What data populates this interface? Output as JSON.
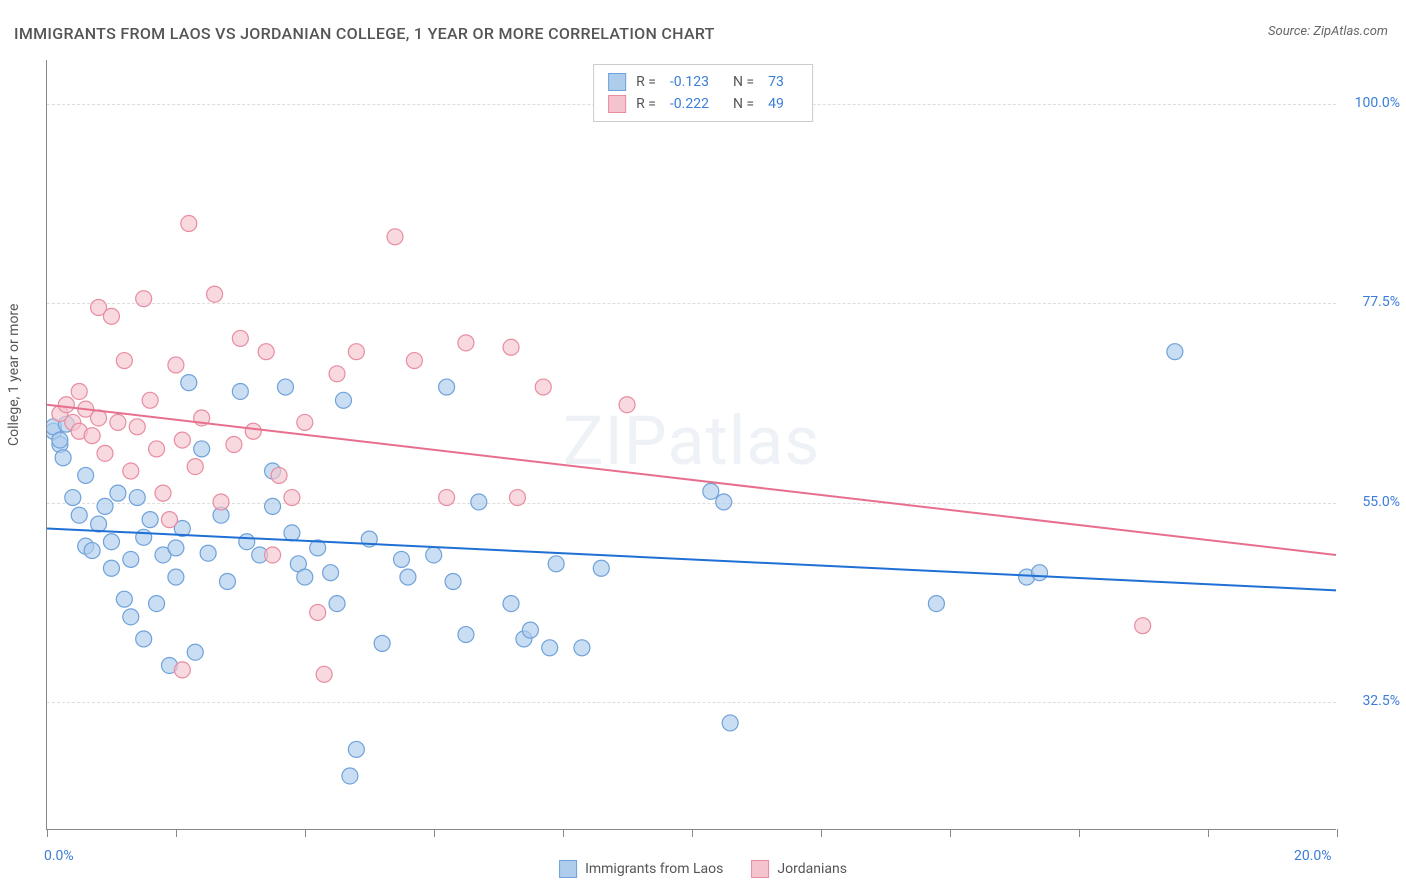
{
  "title": "IMMIGRANTS FROM LAOS VS JORDANIAN COLLEGE, 1 YEAR OR MORE CORRELATION CHART",
  "source": "Source: ZipAtlas.com",
  "watermark": "ZIPatlas",
  "y_axis_title": "College, 1 year or more",
  "chart": {
    "type": "scatter",
    "xlim": [
      0,
      20
    ],
    "ylim": [
      18,
      105
    ],
    "x_ticks": [
      0,
      2,
      4,
      6,
      8,
      10,
      12,
      14,
      16,
      18,
      20
    ],
    "x_tick_labels_shown": {
      "0": "0.0%",
      "20": "20.0%"
    },
    "y_ticks": [
      32.5,
      55.0,
      77.5,
      100.0
    ],
    "y_tick_labels": [
      "32.5%",
      "55.0%",
      "77.5%",
      "100.0%"
    ],
    "grid_color": "#dddddd",
    "axis_color": "#888888",
    "background": "#ffffff",
    "label_color": "#3b7dd8",
    "marker_radius": 8,
    "marker_stroke_width": 1.2,
    "trend_line_width": 2,
    "series": [
      {
        "name": "Immigrants from Laos",
        "fill": "#aeccec",
        "stroke": "#6fa2da",
        "trend_color": "#1f6fd4",
        "R": "-0.123",
        "N": "73",
        "trend": {
          "x1": 0,
          "y1": 52.0,
          "x2": 20,
          "y2": 45.0
        },
        "points": [
          [
            0.1,
            63.0
          ],
          [
            0.1,
            63.5
          ],
          [
            0.2,
            61.5
          ],
          [
            0.2,
            62.0
          ],
          [
            0.25,
            60.0
          ],
          [
            0.3,
            63.8
          ],
          [
            0.4,
            55.5
          ],
          [
            0.5,
            53.5
          ],
          [
            0.6,
            50.0
          ],
          [
            0.6,
            58.0
          ],
          [
            0.7,
            49.5
          ],
          [
            0.8,
            52.5
          ],
          [
            0.9,
            54.5
          ],
          [
            1.0,
            50.5
          ],
          [
            1.0,
            47.5
          ],
          [
            1.1,
            56.0
          ],
          [
            1.2,
            44.0
          ],
          [
            1.3,
            48.5
          ],
          [
            1.3,
            42.0
          ],
          [
            1.5,
            51.0
          ],
          [
            1.5,
            39.5
          ],
          [
            1.6,
            53.0
          ],
          [
            1.7,
            43.5
          ],
          [
            1.8,
            49.0
          ],
          [
            1.9,
            36.5
          ],
          [
            2.0,
            46.5
          ],
          [
            2.0,
            49.8
          ],
          [
            2.1,
            52.0
          ],
          [
            2.2,
            68.5
          ],
          [
            2.3,
            38.0
          ],
          [
            2.4,
            61.0
          ],
          [
            2.5,
            49.2
          ],
          [
            2.7,
            53.5
          ],
          [
            2.8,
            46.0
          ],
          [
            3.0,
            67.5
          ],
          [
            3.1,
            50.5
          ],
          [
            3.3,
            49.0
          ],
          [
            3.5,
            54.5
          ],
          [
            3.5,
            58.5
          ],
          [
            3.7,
            68.0
          ],
          [
            3.8,
            51.5
          ],
          [
            3.9,
            48.0
          ],
          [
            4.0,
            46.5
          ],
          [
            4.2,
            49.8
          ],
          [
            4.4,
            47.0
          ],
          [
            4.5,
            43.5
          ],
          [
            4.6,
            66.5
          ],
          [
            4.7,
            24.0
          ],
          [
            4.8,
            27.0
          ],
          [
            5.0,
            50.8
          ],
          [
            5.2,
            39.0
          ],
          [
            5.5,
            48.5
          ],
          [
            5.6,
            46.5
          ],
          [
            6.0,
            49.0
          ],
          [
            6.2,
            68.0
          ],
          [
            6.3,
            46.0
          ],
          [
            6.5,
            40.0
          ],
          [
            6.7,
            55.0
          ],
          [
            7.2,
            43.5
          ],
          [
            7.4,
            39.5
          ],
          [
            7.5,
            40.5
          ],
          [
            7.8,
            38.5
          ],
          [
            7.9,
            48.0
          ],
          [
            8.3,
            38.5
          ],
          [
            8.6,
            47.5
          ],
          [
            10.3,
            56.2
          ],
          [
            10.5,
            55.0
          ],
          [
            10.6,
            30.0
          ],
          [
            13.8,
            43.5
          ],
          [
            15.2,
            46.5
          ],
          [
            15.4,
            47.0
          ],
          [
            17.5,
            72.0
          ],
          [
            1.4,
            55.5
          ]
        ]
      },
      {
        "name": "Jordanians",
        "fill": "#f4c4ce",
        "stroke": "#e88ca0",
        "trend_color": "#e76f8d",
        "R": "-0.222",
        "N": "49",
        "trend": {
          "x1": 0,
          "y1": 66.0,
          "x2": 20,
          "y2": 49.0
        },
        "points": [
          [
            0.2,
            65.0
          ],
          [
            0.3,
            66.0
          ],
          [
            0.4,
            64.0
          ],
          [
            0.5,
            63.0
          ],
          [
            0.5,
            67.5
          ],
          [
            0.6,
            65.5
          ],
          [
            0.7,
            62.5
          ],
          [
            0.8,
            77.0
          ],
          [
            0.8,
            64.5
          ],
          [
            0.9,
            60.5
          ],
          [
            1.0,
            76.0
          ],
          [
            1.1,
            64.0
          ],
          [
            1.2,
            71.0
          ],
          [
            1.3,
            58.5
          ],
          [
            1.4,
            63.5
          ],
          [
            1.5,
            78.0
          ],
          [
            1.6,
            66.5
          ],
          [
            1.7,
            61.0
          ],
          [
            1.8,
            56.0
          ],
          [
            1.9,
            53.0
          ],
          [
            2.0,
            70.5
          ],
          [
            2.1,
            62.0
          ],
          [
            2.1,
            36.0
          ],
          [
            2.2,
            86.5
          ],
          [
            2.3,
            59.0
          ],
          [
            2.4,
            64.5
          ],
          [
            2.6,
            78.5
          ],
          [
            2.7,
            55.0
          ],
          [
            2.9,
            61.5
          ],
          [
            3.0,
            73.5
          ],
          [
            3.2,
            63.0
          ],
          [
            3.4,
            72.0
          ],
          [
            3.5,
            49.0
          ],
          [
            3.6,
            58.0
          ],
          [
            3.8,
            55.5
          ],
          [
            4.0,
            64.0
          ],
          [
            4.2,
            42.5
          ],
          [
            4.3,
            35.5
          ],
          [
            4.5,
            69.5
          ],
          [
            4.8,
            72.0
          ],
          [
            5.4,
            85.0
          ],
          [
            5.7,
            71.0
          ],
          [
            6.2,
            55.5
          ],
          [
            6.5,
            73.0
          ],
          [
            7.2,
            72.5
          ],
          [
            7.3,
            55.5
          ],
          [
            7.7,
            68.0
          ],
          [
            9.0,
            66.0
          ],
          [
            17.0,
            41.0
          ]
        ]
      }
    ]
  },
  "legend_bottom": {
    "items": [
      {
        "label": "Immigrants from Laos",
        "fill": "#aeccec",
        "stroke": "#6fa2da"
      },
      {
        "label": "Jordanians",
        "fill": "#f4c4ce",
        "stroke": "#e88ca0"
      }
    ]
  }
}
